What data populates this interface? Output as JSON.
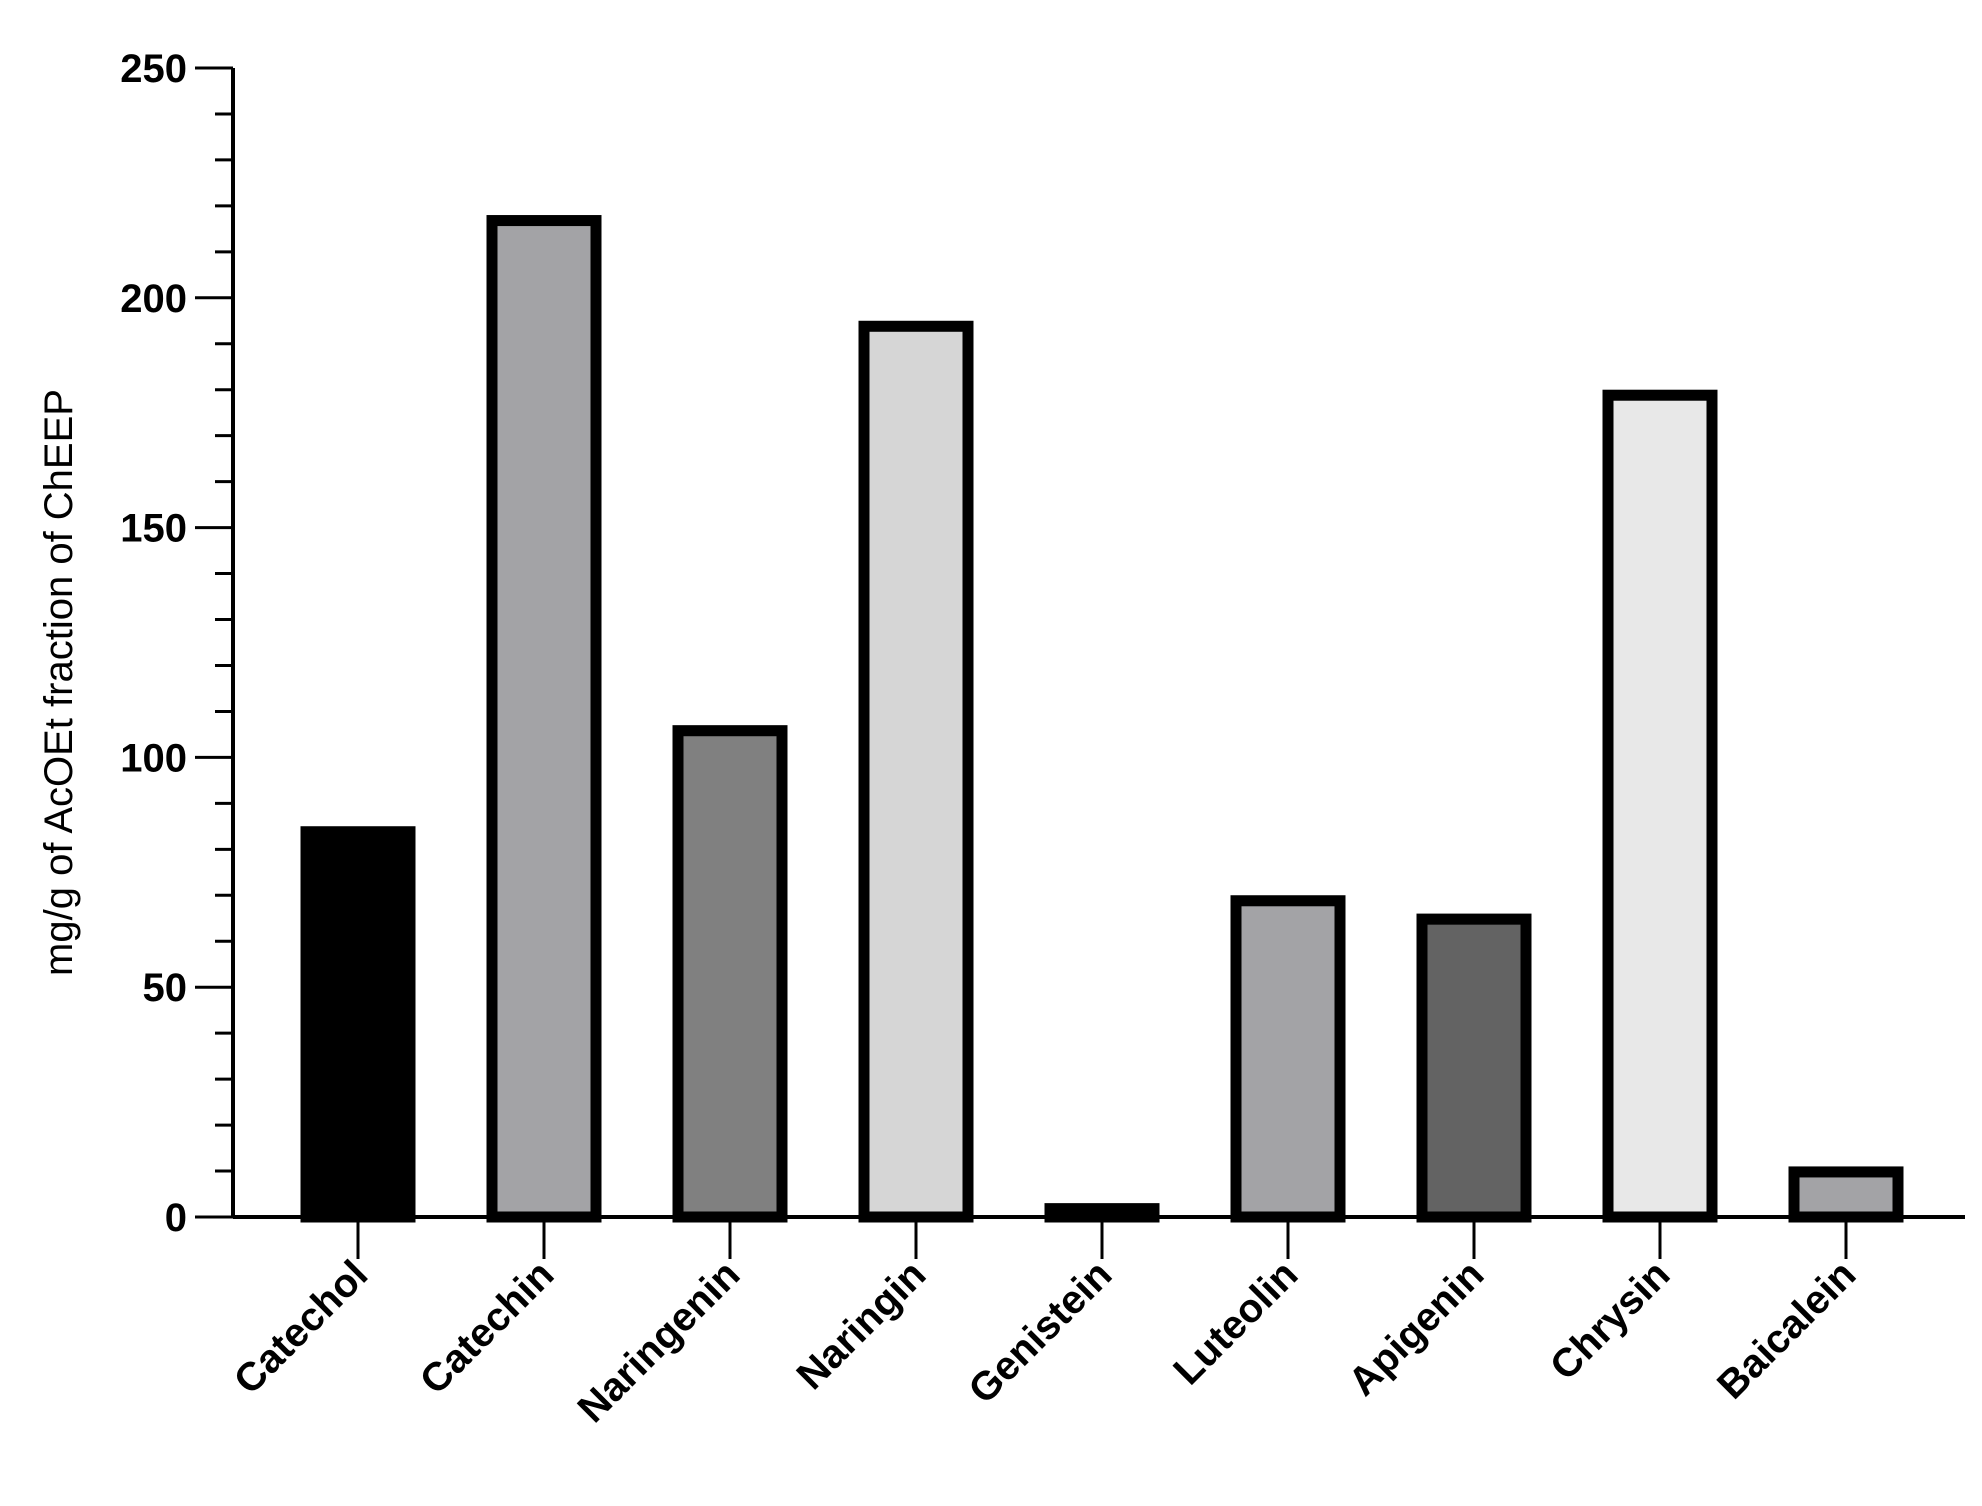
{
  "chart_data": {
    "type": "bar",
    "title": "",
    "xlabel": "",
    "ylabel": "mg/g of AcOEt fraction of ChEEP",
    "ylim": [
      0,
      250
    ],
    "yticks": [
      0,
      50,
      100,
      150,
      200,
      250
    ],
    "yticks_minor_step": 10,
    "categories": [
      "Catechol",
      "Catechin",
      "Naringenin",
      "Naringin",
      "Genistein",
      "Luteolin",
      "Apigenin",
      "Chrysin",
      "Baicalein"
    ],
    "values": [
      85,
      218,
      107,
      195,
      3,
      70,
      66,
      180,
      11
    ],
    "colors": [
      "#000000",
      "#a3a3a6",
      "#808080",
      "#d6d6d6",
      "#555555",
      "#a3a3a6",
      "#636363",
      "#e8e8e8",
      "#a3a3a6"
    ],
    "edge_color": "#000000",
    "grid": false,
    "legend": "none"
  }
}
